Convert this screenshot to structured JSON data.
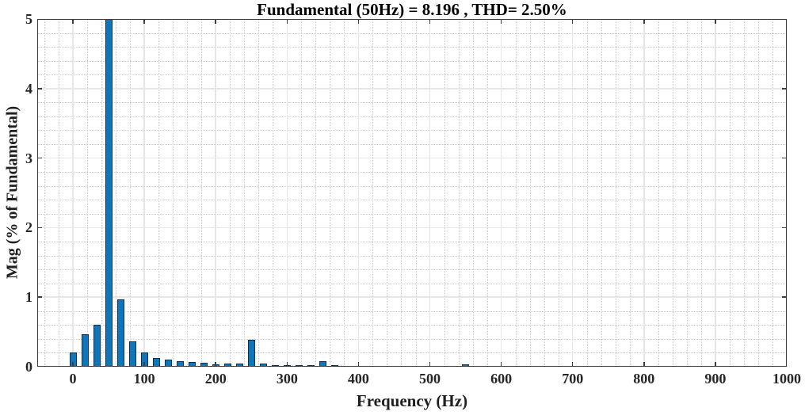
{
  "figure": {
    "background_color": "#ffffff",
    "axis_color": "#3d3d3d",
    "major_grid_color": "#e6e6e6",
    "minor_grid_color": "#cccccc"
  },
  "chart_data": {
    "type": "bar",
    "title": "Fundamental (50Hz) = 8.196 , THD= 2.50%",
    "xlabel": "Frequency (Hz)",
    "ylabel": "Mag (% of Fundamental)",
    "xlim": [
      -50,
      1000
    ],
    "ylim": [
      0,
      5
    ],
    "xticks": [
      0,
      100,
      200,
      300,
      400,
      500,
      600,
      700,
      800,
      900,
      1000
    ],
    "yticks": [
      0,
      1,
      2,
      3,
      4,
      5
    ],
    "grid": {
      "major": "solid",
      "minor": "dotted",
      "x_minor_step_hz": 20,
      "y_minor_step": 0.2
    },
    "legend": "none",
    "bar_color": "#0f76bc",
    "bar_edge_color": "#0e3050",
    "fundamental_hz": 50,
    "fundamental_value": 8.196,
    "thd_percent": 2.5,
    "note": "Bar at 50 Hz is the fundamental (100% of itself) and is clipped at the y-axis limit of 5",
    "bars_freq_hz_vs_percent": [
      [
        0,
        0.21
      ],
      [
        16.67,
        0.47
      ],
      [
        33.33,
        0.6
      ],
      [
        50,
        100
      ],
      [
        66.67,
        0.97
      ],
      [
        83.33,
        0.36
      ],
      [
        100,
        0.2
      ],
      [
        116.67,
        0.12
      ],
      [
        133.33,
        0.1
      ],
      [
        150,
        0.08
      ],
      [
        166.67,
        0.065
      ],
      [
        183.33,
        0.055
      ],
      [
        200,
        0.04
      ],
      [
        216.67,
        0.05
      ],
      [
        233.33,
        0.05
      ],
      [
        250,
        0.39
      ],
      [
        266.67,
        0.05
      ],
      [
        283.33,
        0.025
      ],
      [
        300,
        0.025
      ],
      [
        316.67,
        0.025
      ],
      [
        333.33,
        0.025
      ],
      [
        350,
        0.08
      ],
      [
        366.67,
        0.02
      ],
      [
        383.33,
        0
      ],
      [
        400,
        0
      ],
      [
        416.67,
        0
      ],
      [
        433.33,
        0
      ],
      [
        450,
        0
      ],
      [
        466.67,
        0
      ],
      [
        483.33,
        0
      ],
      [
        500,
        0
      ],
      [
        516.67,
        0
      ],
      [
        533.33,
        0
      ],
      [
        550,
        0.03
      ]
    ]
  }
}
